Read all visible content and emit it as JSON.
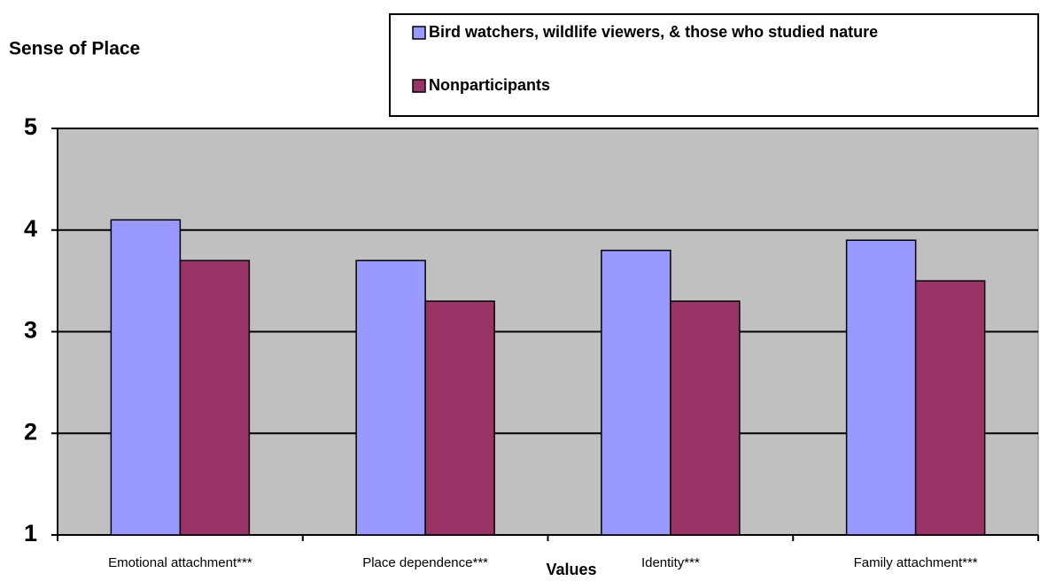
{
  "chart_data": {
    "type": "bar",
    "title": "Sense of Place",
    "x_label": "Values",
    "categories": [
      "Emotional attachment***",
      "Place dependence***",
      "Identity***",
      "Family attachment***"
    ],
    "series": [
      {
        "name": "Bird watchers, wildlife viewers, & those who studied nature",
        "color": "#9999ff",
        "values": [
          4.1,
          3.7,
          3.8,
          3.9
        ]
      },
      {
        "name": "Nonparticipants",
        "color": "#993366",
        "values": [
          3.7,
          3.3,
          3.3,
          3.5
        ]
      }
    ],
    "ylim": [
      1,
      5
    ],
    "yticks": [
      1,
      2,
      3,
      4,
      5
    ],
    "grid": true,
    "plot_background": "#c0c0c0"
  }
}
